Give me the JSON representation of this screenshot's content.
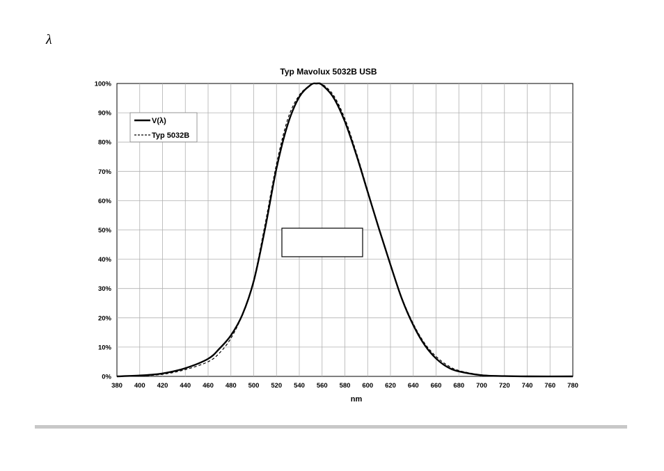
{
  "header": {
    "symbol": "λ"
  },
  "chart_data": {
    "type": "line",
    "title": "Typ Mavolux 5032B USB",
    "xlabel": "nm",
    "ylabel": "",
    "xlim": [
      380,
      780
    ],
    "ylim": [
      0,
      100
    ],
    "x_ticks": [
      "380",
      "400",
      "420",
      "440",
      "460",
      "480",
      "500",
      "520",
      "540",
      "560",
      "580",
      "600",
      "620",
      "640",
      "660",
      "680",
      "700",
      "720",
      "740",
      "760",
      "780"
    ],
    "y_ticks": [
      "0%",
      "10%",
      "20%",
      "30%",
      "40%",
      "50%",
      "60%",
      "70%",
      "80%",
      "90%",
      "100%"
    ],
    "grid": true,
    "legend_position": "top-left",
    "x": [
      380,
      400,
      420,
      440,
      460,
      470,
      480,
      490,
      500,
      510,
      520,
      530,
      540,
      550,
      555,
      560,
      570,
      580,
      590,
      600,
      610,
      620,
      630,
      640,
      650,
      660,
      670,
      680,
      700,
      720,
      740,
      780
    ],
    "series": [
      {
        "name": "V(λ)",
        "style": "solid",
        "color": "#000000",
        "values": [
          0,
          0.3,
          1.0,
          2.8,
          6.0,
          9.5,
          14.0,
          21.0,
          32.5,
          50.5,
          71.0,
          86.2,
          95.4,
          99.5,
          100,
          99.5,
          95.2,
          87.0,
          75.7,
          63.0,
          50.3,
          38.1,
          26.5,
          17.5,
          10.7,
          6.1,
          3.2,
          1.7,
          0.4,
          0.1,
          0,
          0
        ]
      },
      {
        "name": "Typ 5032B",
        "style": "dashed",
        "color": "#000000",
        "values": [
          0,
          0.2,
          0.7,
          2.3,
          5.0,
          8.0,
          13.0,
          21.0,
          33.0,
          52.0,
          72.5,
          88.0,
          96.0,
          99.5,
          100,
          99.8,
          96.0,
          88.0,
          76.5,
          63.5,
          50.5,
          38.0,
          26.8,
          18.0,
          11.3,
          6.8,
          3.8,
          2.0,
          0.5,
          0.1,
          0,
          0
        ]
      }
    ],
    "annotation_box": {
      "label": ""
    }
  }
}
